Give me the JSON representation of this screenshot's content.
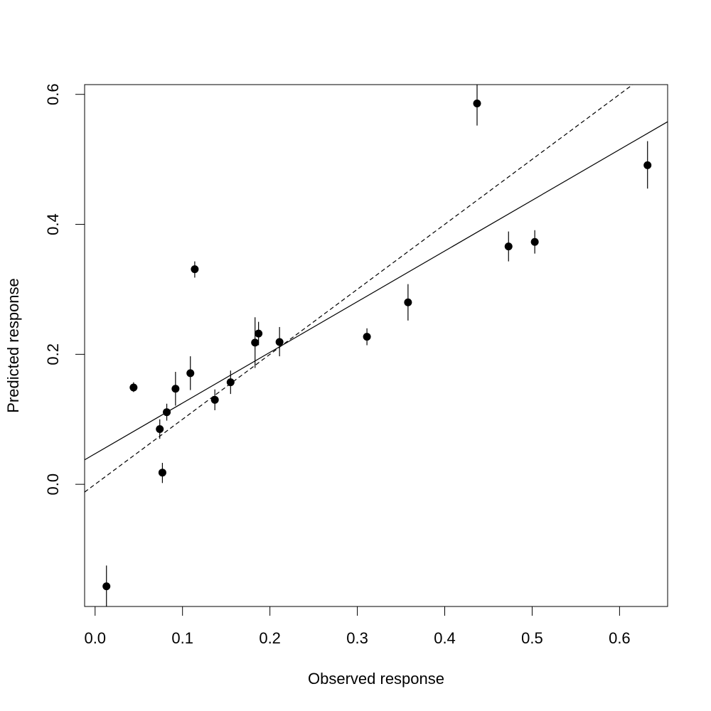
{
  "chart_data": {
    "type": "scatter",
    "title": "",
    "xlabel": "Observed response",
    "ylabel": "Predicted response",
    "xlim": [
      -0.012,
      0.655
    ],
    "ylim": [
      -0.188,
      0.615
    ],
    "x_ticks": [
      0.0,
      0.1,
      0.2,
      0.3,
      0.4,
      0.5,
      0.6
    ],
    "x_tick_labels": [
      "0.0",
      "0.1",
      "0.2",
      "0.3",
      "0.4",
      "0.5",
      "0.6"
    ],
    "y_ticks": [
      0.0,
      0.2,
      0.4,
      0.6
    ],
    "y_tick_labels": [
      "0.0",
      "0.2",
      "0.4",
      "0.6"
    ],
    "grid": false,
    "points": [
      {
        "x": 0.013,
        "y": -0.157,
        "lo": -0.188,
        "hi": -0.125
      },
      {
        "x": 0.044,
        "y": 0.149,
        "lo": 0.142,
        "hi": 0.157
      },
      {
        "x": 0.074,
        "y": 0.085,
        "lo": 0.07,
        "hi": 0.1
      },
      {
        "x": 0.077,
        "y": 0.018,
        "lo": 0.002,
        "hi": 0.033
      },
      {
        "x": 0.082,
        "y": 0.111,
        "lo": 0.098,
        "hi": 0.124
      },
      {
        "x": 0.092,
        "y": 0.147,
        "lo": 0.121,
        "hi": 0.173
      },
      {
        "x": 0.109,
        "y": 0.171,
        "lo": 0.145,
        "hi": 0.197
      },
      {
        "x": 0.114,
        "y": 0.331,
        "lo": 0.318,
        "hi": 0.343
      },
      {
        "x": 0.137,
        "y": 0.13,
        "lo": 0.114,
        "hi": 0.146
      },
      {
        "x": 0.155,
        "y": 0.157,
        "lo": 0.139,
        "hi": 0.175
      },
      {
        "x": 0.183,
        "y": 0.218,
        "lo": 0.179,
        "hi": 0.257
      },
      {
        "x": 0.187,
        "y": 0.232,
        "lo": 0.214,
        "hi": 0.25
      },
      {
        "x": 0.211,
        "y": 0.219,
        "lo": 0.197,
        "hi": 0.242
      },
      {
        "x": 0.311,
        "y": 0.227,
        "lo": 0.214,
        "hi": 0.24
      },
      {
        "x": 0.358,
        "y": 0.28,
        "lo": 0.252,
        "hi": 0.308
      },
      {
        "x": 0.437,
        "y": 0.586,
        "lo": 0.552,
        "hi": 0.615
      },
      {
        "x": 0.473,
        "y": 0.366,
        "lo": 0.343,
        "hi": 0.389
      },
      {
        "x": 0.503,
        "y": 0.373,
        "lo": 0.355,
        "hi": 0.391
      },
      {
        "x": 0.632,
        "y": 0.491,
        "lo": 0.455,
        "hi": 0.528
      }
    ],
    "lines": [
      {
        "style": "solid",
        "intercept": 0.047,
        "slope": 0.78
      },
      {
        "style": "dashed",
        "intercept": 0.0,
        "slope": 1.0
      }
    ]
  }
}
